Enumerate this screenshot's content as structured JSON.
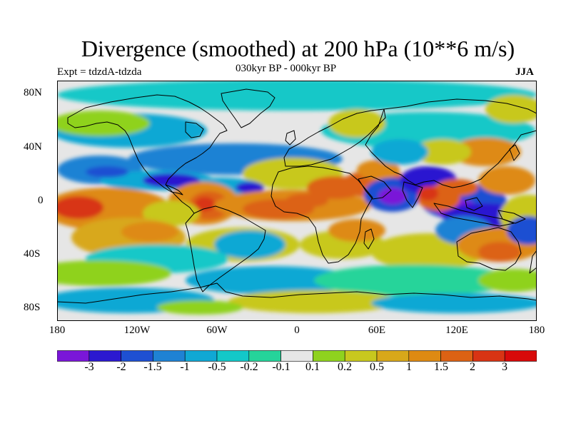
{
  "title": "Divergence (smoothed) at 200 hPa (10**6 m/s)",
  "subtitle": "030kyr BP - 000kyr BP",
  "experiment": "Expt = tdzdA-tdzda",
  "season": "JJA",
  "lat_labels": [
    "80N",
    "40N",
    "0",
    "40S",
    "80S"
  ],
  "lon_labels": [
    "180",
    "120W",
    "60W",
    "0",
    "60E",
    "120E",
    "180"
  ],
  "colorbar": {
    "colors": [
      "#7a16d8",
      "#2b19d0",
      "#1e50d2",
      "#1f82d4",
      "#10a8d4",
      "#13c8c8",
      "#25d49a",
      "#e6e6e6",
      "#8fd21e",
      "#c8c81e",
      "#d8a81a",
      "#de8a12",
      "#dc6214",
      "#d83414",
      "#d80a0a"
    ],
    "labels": [
      "-3",
      "-2",
      "-1.5",
      "-1",
      "-0.5",
      "-0.2",
      "-0.1",
      "0.1",
      "0.2",
      "0.5",
      "1",
      "1.5",
      "2",
      "3"
    ]
  },
  "colors": {
    "neutral": "#e6e6e6"
  }
}
